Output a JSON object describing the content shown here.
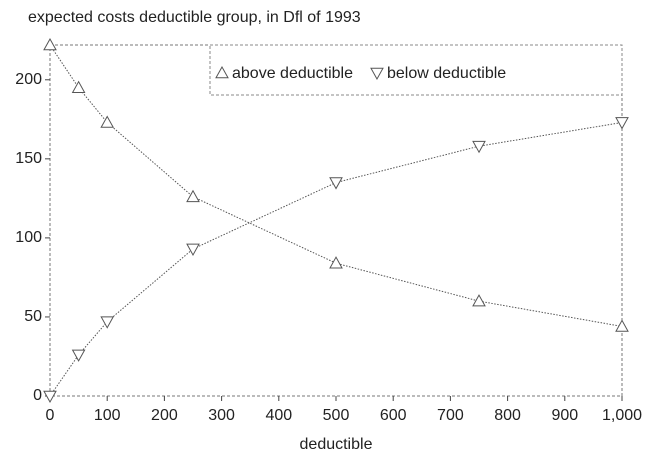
{
  "chart_data": {
    "type": "line",
    "title": "expected costs deductible group, in Dfl of 1993",
    "x_label": "deductible",
    "x": [
      0,
      50,
      100,
      250,
      500,
      750,
      1000
    ],
    "series": [
      {
        "name": "above deductible",
        "color": "#555555",
        "marker": "triangle-up",
        "values": [
          222,
          195,
          173,
          126,
          84,
          60,
          44
        ]
      },
      {
        "name": "below deductible",
        "color": "#555555",
        "marker": "triangle-down",
        "values": [
          0,
          26,
          47,
          93,
          135,
          158,
          173
        ]
      }
    ],
    "xlim": [
      0,
      1000
    ],
    "xticks": [
      0,
      100,
      200,
      300,
      400,
      500,
      600,
      700,
      800,
      900,
      {
        "value": 1000,
        "label": "1,000"
      }
    ],
    "ylim": [
      0,
      222
    ],
    "yticks": [
      0,
      50,
      100,
      150,
      200
    ],
    "legend": "upper right",
    "grid": false
  }
}
